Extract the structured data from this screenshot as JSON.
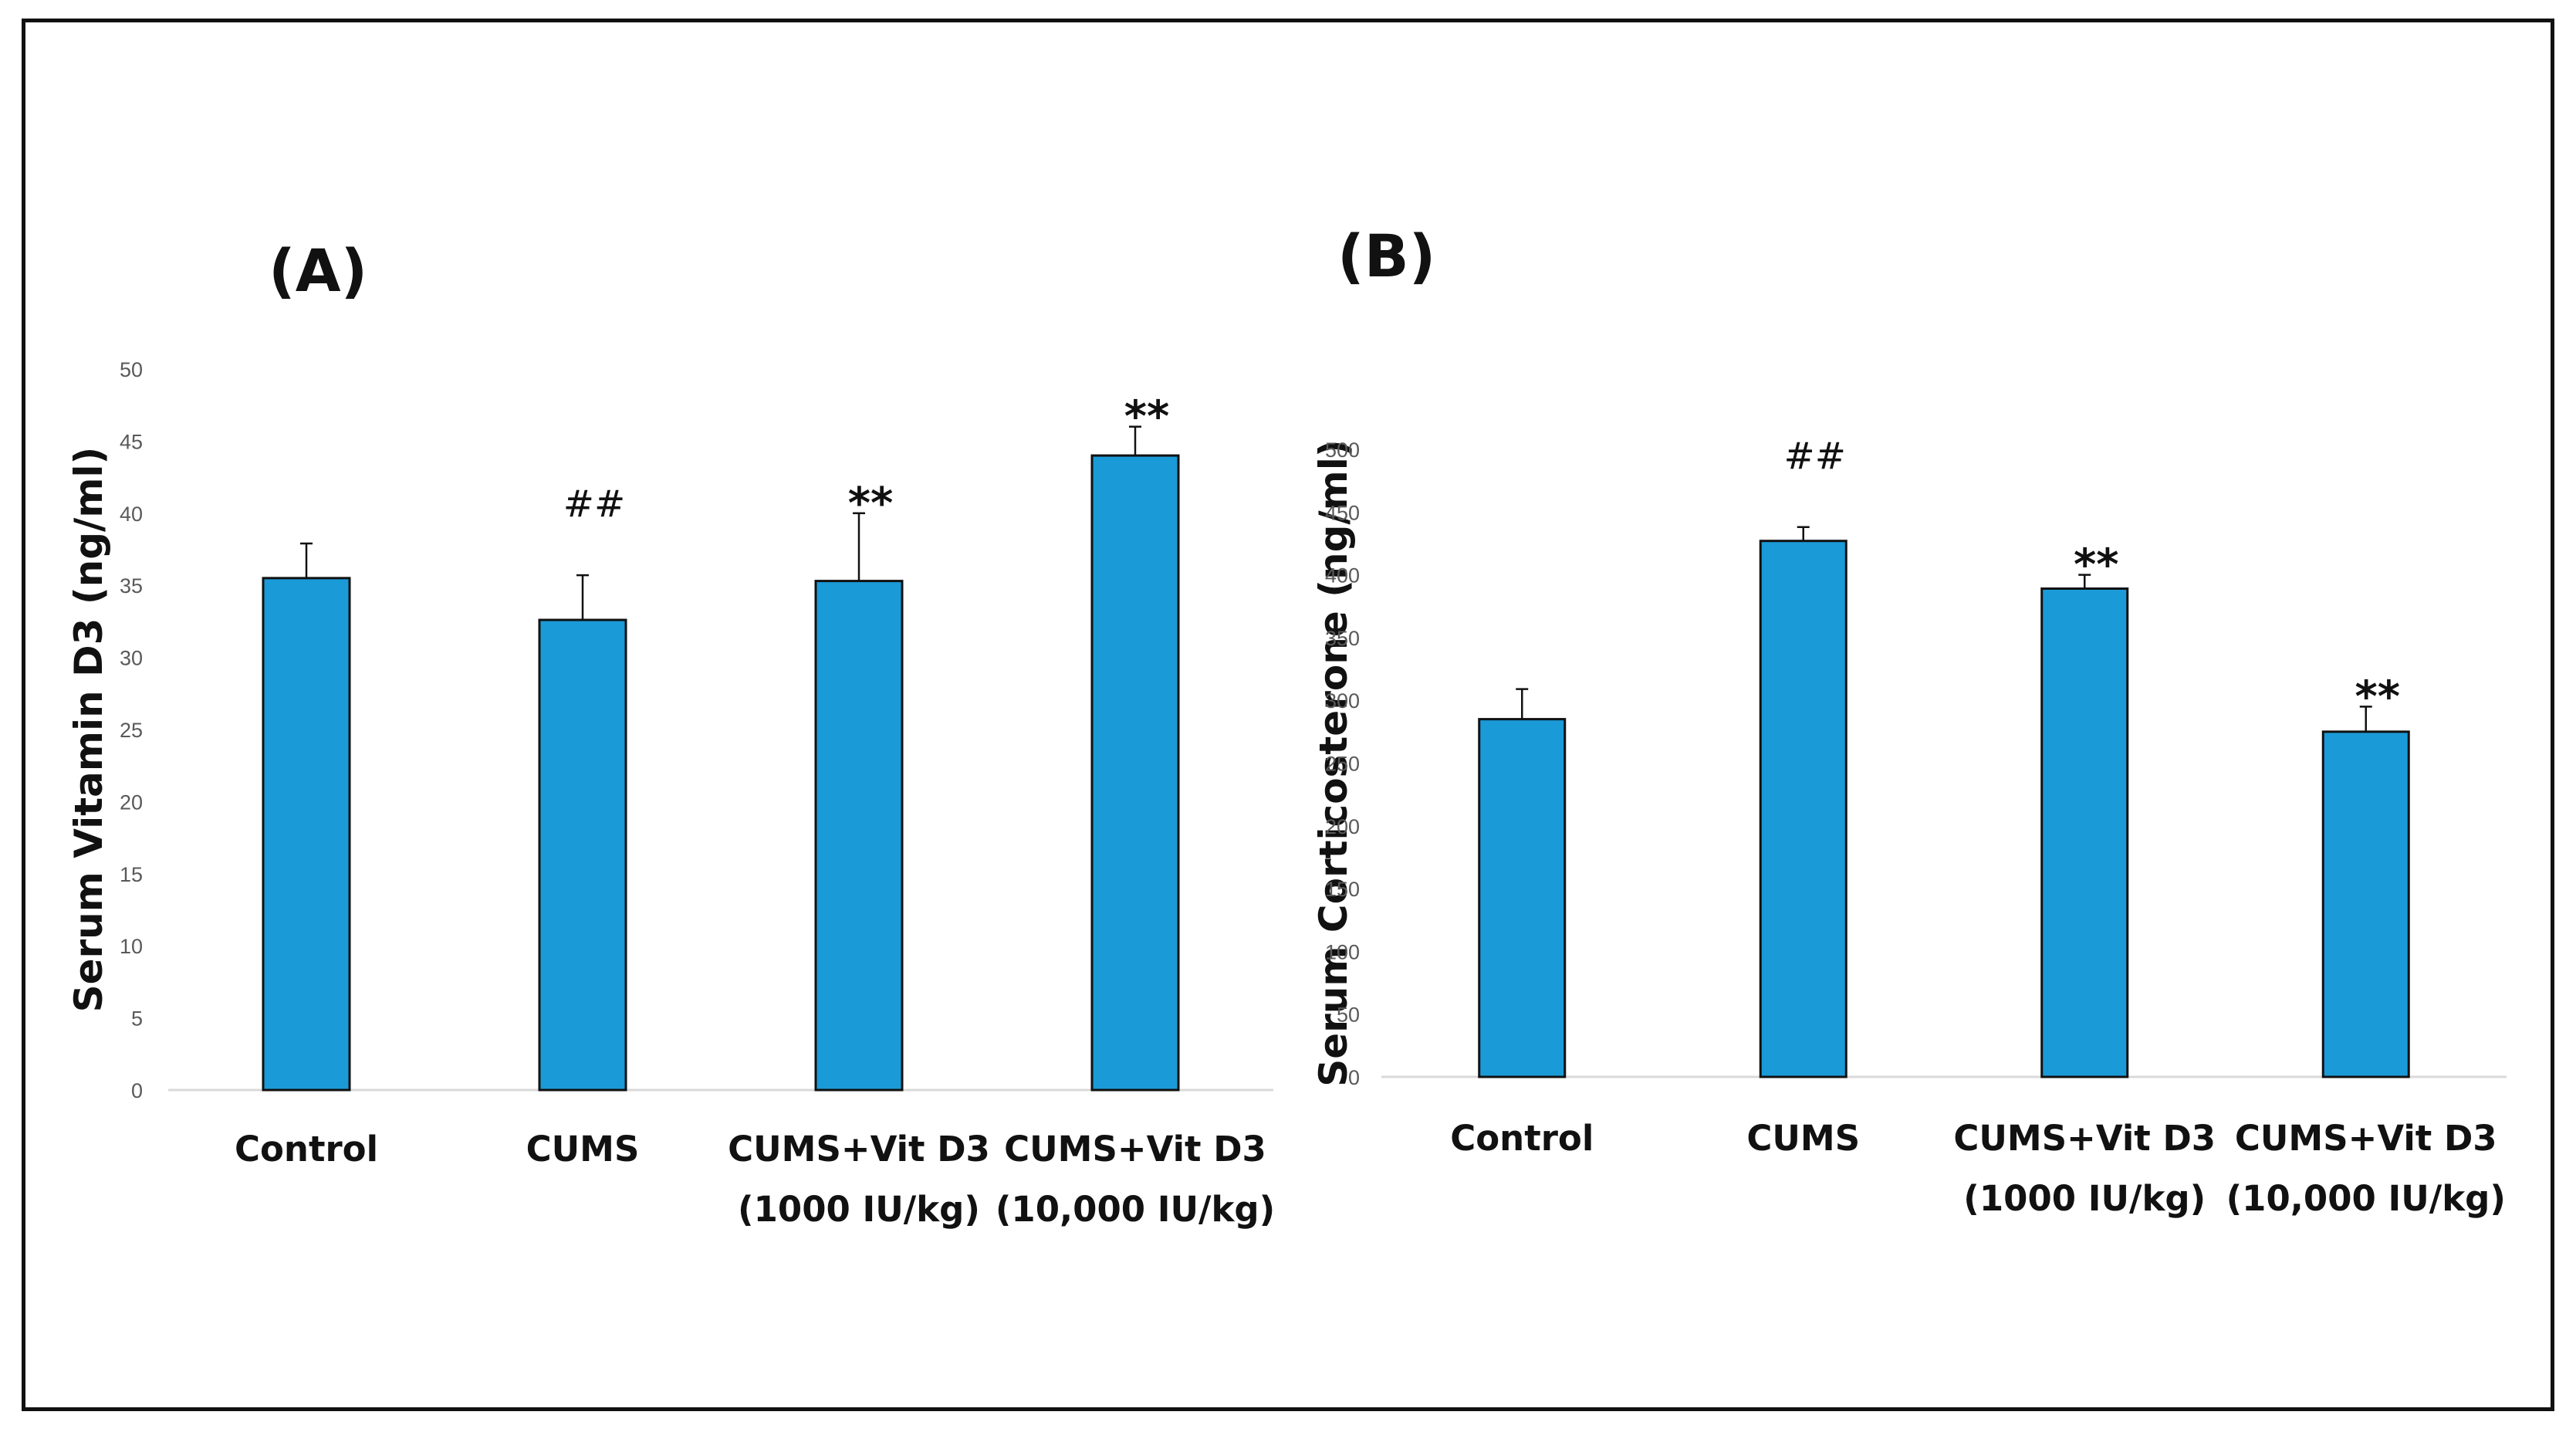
{
  "chart_data": [
    {
      "panel_label": "(A)",
      "type": "bar",
      "ylabel": "Serum Vitamin D3 (ng/ml)",
      "ylim": [
        0,
        50
      ],
      "yticks": [
        0,
        5,
        10,
        15,
        20,
        25,
        30,
        35,
        40,
        45,
        50
      ],
      "categories": [
        [
          "Control"
        ],
        [
          "CUMS"
        ],
        [
          "CUMS+Vit D3",
          "(1000 IU/kg)"
        ],
        [
          "CUMS+Vit D3",
          "(10,000 IU/kg)"
        ]
      ],
      "values": [
        35.5,
        32.6,
        35.3,
        44
      ],
      "errors": [
        2.4,
        3.1,
        4.7,
        2
      ],
      "annotations": [
        "",
        "##",
        "**",
        "**"
      ],
      "bar_color": "#1b9ad8",
      "grid": false,
      "legend": "none"
    },
    {
      "panel_label": "(B)",
      "type": "bar",
      "ylabel": "Serum Corticosterone (ng/ml)",
      "ylim": [
        0,
        500
      ],
      "yticks": [
        0,
        50,
        100,
        150,
        200,
        250,
        300,
        350,
        400,
        450,
        500
      ],
      "categories": [
        [
          "Control"
        ],
        [
          "CUMS"
        ],
        [
          "CUMS+Vit D3",
          "(1000 IU/kg)"
        ],
        [
          "CUMS+Vit D3",
          "(10,000 IU/kg)"
        ]
      ],
      "values": [
        285,
        427,
        389,
        275
      ],
      "errors": [
        24,
        11,
        11,
        20
      ],
      "annotations": [
        "",
        "##",
        "**",
        "**"
      ],
      "bar_color": "#1b9ad8",
      "grid": false,
      "legend": "none"
    }
  ]
}
